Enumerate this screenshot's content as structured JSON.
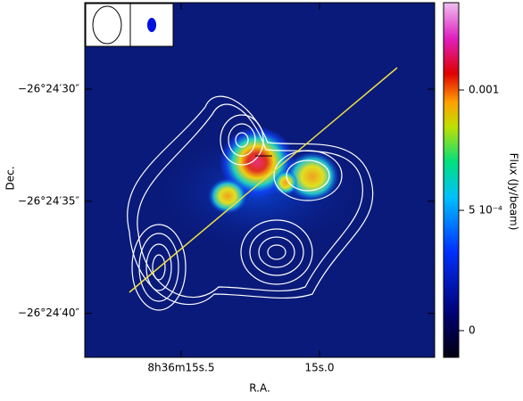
{
  "chart_data": {
    "type": "image",
    "x_label": "R.A.",
    "y_label": "Dec.",
    "colorbar_label": "Flux (Jy/beam)",
    "xlim": [
      129.066033,
      129.060767
    ],
    "xticks": [
      {
        "value": 129.0645833,
        "label": "8h36m15s.5"
      },
      {
        "value": 129.0625,
        "label": "15s.0"
      }
    ],
    "ylim": [
      -26.411656,
      -26.407261
    ],
    "yticks": [
      {
        "value": -26.408333,
        "label": "−26°24′30″"
      },
      {
        "value": -26.409722,
        "label": "−26°24′35″"
      },
      {
        "value": -26.411111,
        "label": "−26°24′40″"
      }
    ],
    "clim": [
      -0.000111,
      0.001363
    ],
    "cticks": [
      0,
      {
        "value": 0.0005,
        "label": "5 10⁻⁴"
      },
      0.001
    ]
  }
}
